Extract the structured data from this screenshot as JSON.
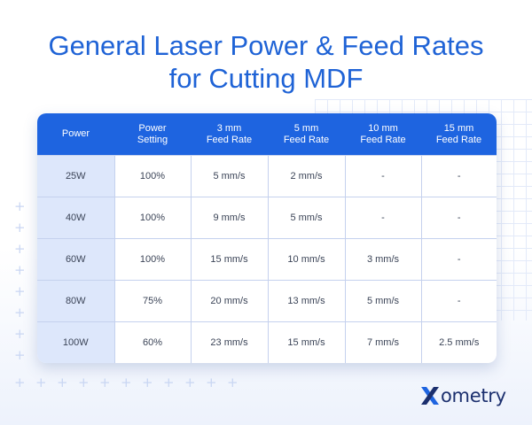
{
  "title": {
    "line1": "General Laser Power & Feed Rates",
    "line2": "for Cutting MDF"
  },
  "table": {
    "headers": [
      [
        "Power"
      ],
      [
        "Power",
        "Setting"
      ],
      [
        "3 mm",
        "Feed Rate"
      ],
      [
        "5 mm",
        "Feed Rate"
      ],
      [
        "10 mm",
        "Feed Rate"
      ],
      [
        "15 mm",
        "Feed Rate"
      ]
    ],
    "rows": [
      [
        "25W",
        "100%",
        "5 mm/s",
        "2 mm/s",
        "-",
        "-"
      ],
      [
        "40W",
        "100%",
        "9 mm/s",
        "5 mm/s",
        "-",
        "-"
      ],
      [
        "60W",
        "100%",
        "15 mm/s",
        "10 mm/s",
        "3 mm/s",
        "-"
      ],
      [
        "80W",
        "75%",
        "20 mm/s",
        "13 mm/s",
        "5 mm/s",
        "-"
      ],
      [
        "100W",
        "60%",
        "23 mm/s",
        "15 mm/s",
        "7 mm/s",
        "2.5 mm/s"
      ]
    ]
  },
  "logo": {
    "text": "ometry",
    "mark": "X",
    "colors": {
      "mark_blue": "#1e64e0",
      "mark_navy": "#1b2f6e"
    }
  },
  "colors": {
    "title": "#1f63d6",
    "header_bg": "#1e64e0",
    "power_col_bg": "#dde7fb"
  }
}
